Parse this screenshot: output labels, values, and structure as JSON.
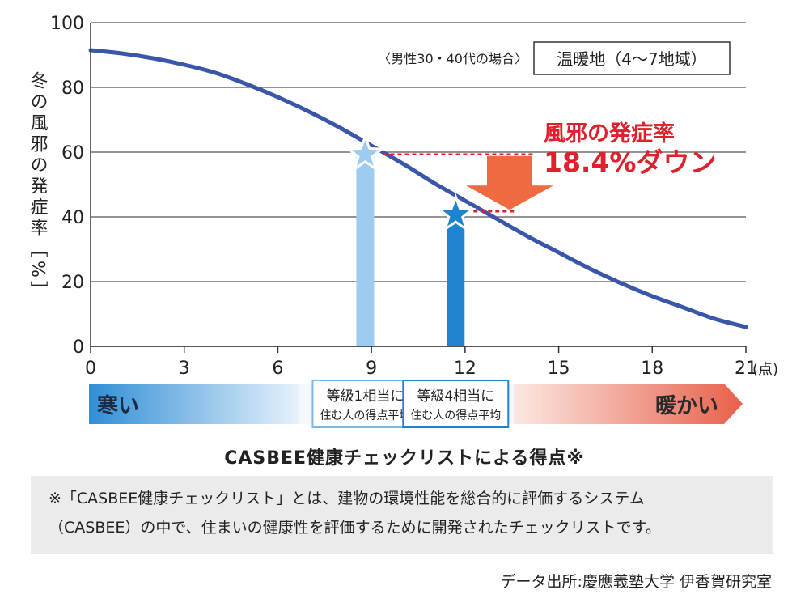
{
  "chart_data": {
    "type": "line",
    "xlabel": "CASBEE健康チェックリストによる得点※",
    "x_unit": "(点)",
    "ylabel": "冬の風邪の発症率［%］",
    "xlim": [
      0,
      21
    ],
    "ylim": [
      0,
      100
    ],
    "xticks": [
      0,
      3,
      6,
      9,
      12,
      15,
      18,
      21
    ],
    "yticks": [
      0,
      20,
      40,
      60,
      80,
      100
    ],
    "grid": true,
    "series": [
      {
        "x": [
          0,
          1,
          2,
          3,
          4,
          5,
          6,
          7,
          8,
          9,
          10,
          11,
          12,
          13,
          14,
          15,
          16,
          17,
          18,
          19,
          20,
          21
        ],
        "values": [
          91.5,
          90.5,
          89,
          87,
          84.5,
          81,
          77,
          72.5,
          67.5,
          62,
          56.5,
          50.5,
          45,
          39.5,
          34,
          29,
          24,
          19.5,
          15.5,
          12,
          8.5,
          6
        ]
      }
    ],
    "highlights": [
      {
        "x": 8.8,
        "value": 59.3,
        "color": "#9ecbf0"
      },
      {
        "x": 11.7,
        "value": 40.7,
        "color": "#1f84d0"
      }
    ],
    "category_labels": [
      {
        "x": 8.8,
        "line1": "等級1相当に",
        "line2": "住む人の得点平均"
      },
      {
        "x": 11.7,
        "line1": "等級4相当に",
        "line2": "住む人の得点平均"
      }
    ],
    "legend_condition": "〈男性30・40代の場合〉",
    "legend_region": "温暖地（4～7地域）",
    "annotation_line1": "風邪の発症率",
    "annotation_line2": "18.4%ダウン",
    "gradient_left_label": "寒い",
    "gradient_right_label": "暖かい"
  },
  "colors": {
    "curve": "#3a56a8",
    "grid": "#555555",
    "annotation_red": "#e0202c",
    "arrow": "#ef6a40"
  },
  "note": {
    "line1": "※「CASBEE健康チェックリスト」とは、建物の環境性能を総合的に評価するシステム",
    "line2": "（CASBEE）の中で、住まいの健康性を評価するために開発されたチェックリストです。"
  },
  "source": "データ出所:慶應義塾大学 伊香賀研究室"
}
